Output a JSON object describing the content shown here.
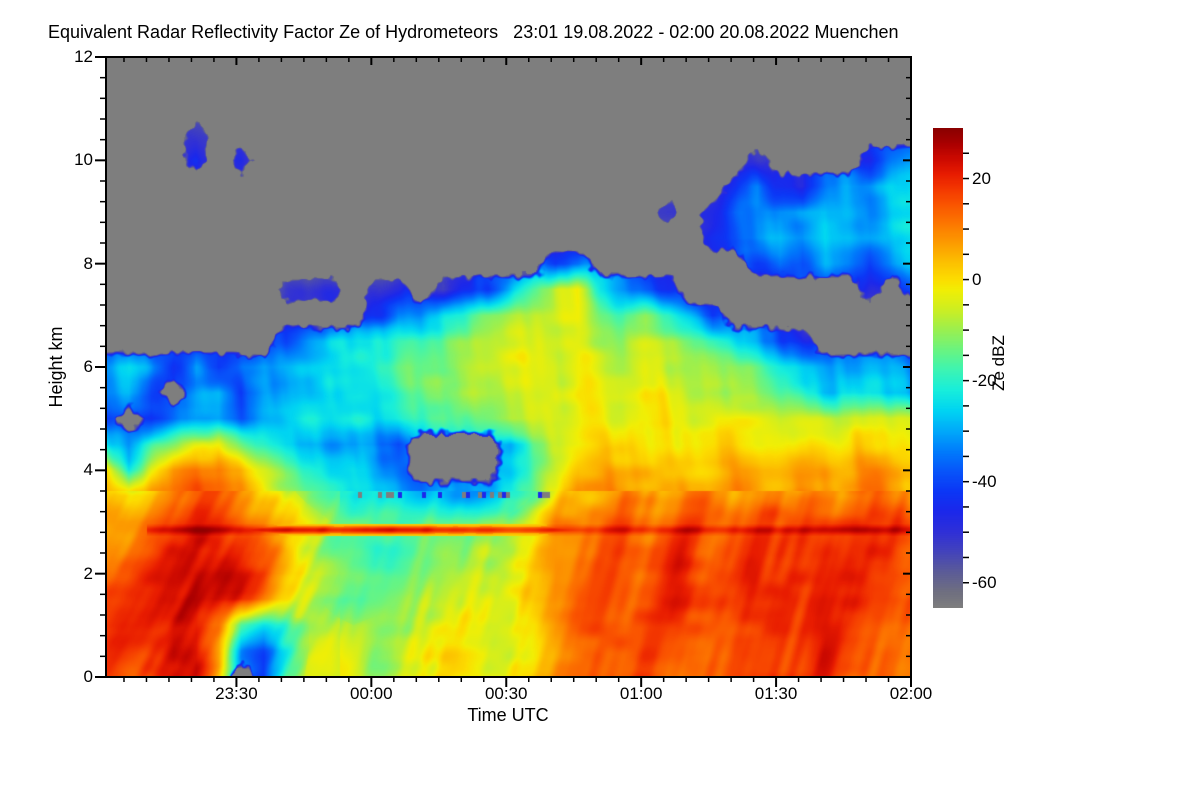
{
  "title": "Equivalent Radar Reflectivity Factor Ze of Hydrometeors   23:01 19.08.2022 - 02:00 20.08.2022 Muenchen",
  "site": "Muenchen",
  "time_span": "23:01 19.08.2022 - 02:00 20.08.2022",
  "no_echo_color": "#7e7e7e",
  "axes": {
    "x": {
      "label": "Time UTC",
      "start_min": 0,
      "end_min": 179,
      "major_ticks": [
        {
          "min": 29,
          "label": "23:30"
        },
        {
          "min": 59,
          "label": "00:00"
        },
        {
          "min": 89,
          "label": "00:30"
        },
        {
          "min": 119,
          "label": "01:00"
        },
        {
          "min": 149,
          "label": "01:30"
        },
        {
          "min": 179,
          "label": "02:00"
        }
      ],
      "minor_step_min": 5,
      "minor_phase_min": 4
    },
    "y": {
      "label": "Height km",
      "min": 0,
      "max": 12,
      "major_ticks": [
        {
          "value": 0,
          "label": "0"
        },
        {
          "value": 2,
          "label": "2"
        },
        {
          "value": 4,
          "label": "4"
        },
        {
          "value": 6,
          "label": "6"
        },
        {
          "value": 8,
          "label": "8"
        },
        {
          "value": 10,
          "label": "10"
        },
        {
          "value": 12,
          "label": "12"
        }
      ],
      "minor_step_km": 0.4
    }
  },
  "colorbar": {
    "label": "Ze dBZ",
    "min": -65,
    "max": 30,
    "minor_step": 5,
    "major_ticks": [
      {
        "value": 20,
        "label": "20"
      },
      {
        "value": 0,
        "label": "0"
      },
      {
        "value": -20,
        "label": "-20"
      },
      {
        "value": -40,
        "label": "-40"
      },
      {
        "value": -60,
        "label": "-60"
      }
    ],
    "stops": [
      [
        -65,
        126,
        126,
        126
      ],
      [
        -62,
        112,
        112,
        128
      ],
      [
        -58,
        92,
        92,
        152
      ],
      [
        -54,
        68,
        68,
        188
      ],
      [
        -50,
        48,
        48,
        216
      ],
      [
        -46,
        28,
        40,
        235
      ],
      [
        -42,
        12,
        55,
        246
      ],
      [
        -38,
        8,
        85,
        250
      ],
      [
        -34,
        0,
        125,
        252
      ],
      [
        -30,
        0,
        170,
        250
      ],
      [
        -26,
        0,
        212,
        243
      ],
      [
        -22,
        24,
        238,
        220
      ],
      [
        -18,
        60,
        244,
        180
      ],
      [
        -14,
        105,
        244,
        130
      ],
      [
        -10,
        155,
        240,
        80
      ],
      [
        -6,
        205,
        238,
        35
      ],
      [
        -2,
        242,
        238,
        5
      ],
      [
        0,
        252,
        222,
        0
      ],
      [
        3,
        252,
        196,
        0
      ],
      [
        6,
        252,
        168,
        0
      ],
      [
        9,
        252,
        140,
        0
      ],
      [
        12,
        252,
        112,
        0
      ],
      [
        15,
        250,
        84,
        0
      ],
      [
        18,
        244,
        56,
        0
      ],
      [
        21,
        232,
        28,
        0
      ],
      [
        24,
        205,
        10,
        0
      ],
      [
        27,
        170,
        0,
        0
      ],
      [
        30,
        139,
        0,
        0
      ]
    ]
  },
  "chart_data": {
    "type": "heatmap",
    "title": "Equivalent Radar Reflectivity Factor Ze of Hydrometeors",
    "xlabel": "Time UTC",
    "ylabel": "Height km",
    "value_label": "Ze dBZ",
    "value_range": [
      -65,
      30
    ],
    "x_start": "23:01",
    "x_end": "02:00",
    "time_minutes": [
      0,
      5,
      10,
      15,
      20,
      25,
      30,
      35,
      40,
      45,
      50,
      55,
      60,
      65,
      70,
      75,
      80,
      85,
      90,
      95,
      100,
      105,
      110,
      115,
      120,
      125,
      130,
      135,
      140,
      145,
      150,
      155,
      160,
      165,
      170,
      175,
      180
    ],
    "heights_km": [
      12,
      11.5,
      11,
      10.5,
      10,
      9.5,
      9,
      8.5,
      8,
      7.5,
      7,
      6.5,
      6,
      5.5,
      5,
      4.5,
      4,
      3.5,
      3,
      2.5,
      2,
      1.5,
      1,
      0.5,
      0
    ],
    "no_echo_value": null,
    "bright_band": {
      "height_km": 2.84,
      "start_min": 10,
      "peak_dbz": 28
    },
    "speckle_gap_row": {
      "height_km": 3.52,
      "start_min": 57,
      "end_min": 100
    },
    "values_dbz": [
      [
        null,
        null,
        null,
        null,
        null,
        null,
        null,
        null,
        null,
        null,
        null,
        null,
        null,
        null,
        null,
        null,
        null,
        null,
        null,
        null,
        null,
        null,
        null,
        null,
        null,
        null,
        null,
        null,
        null,
        null,
        null,
        null,
        null,
        null,
        null,
        null,
        null
      ],
      [
        null,
        null,
        null,
        null,
        null,
        null,
        null,
        null,
        null,
        null,
        null,
        null,
        null,
        null,
        null,
        null,
        null,
        null,
        null,
        null,
        null,
        null,
        null,
        null,
        null,
        null,
        null,
        null,
        null,
        null,
        null,
        null,
        null,
        null,
        null,
        null,
        null
      ],
      [
        null,
        null,
        null,
        null,
        null,
        null,
        null,
        null,
        null,
        null,
        null,
        null,
        null,
        null,
        null,
        null,
        null,
        null,
        null,
        null,
        null,
        null,
        null,
        null,
        null,
        null,
        null,
        null,
        null,
        null,
        null,
        null,
        null,
        null,
        null,
        null,
        null
      ],
      [
        null,
        null,
        null,
        null,
        -52,
        null,
        null,
        null,
        null,
        null,
        null,
        null,
        null,
        null,
        null,
        null,
        null,
        null,
        null,
        null,
        null,
        null,
        null,
        null,
        null,
        null,
        null,
        null,
        null,
        null,
        null,
        null,
        null,
        null,
        null,
        null,
        null
      ],
      [
        null,
        null,
        null,
        null,
        -42,
        null,
        -46,
        null,
        null,
        null,
        null,
        null,
        null,
        null,
        null,
        null,
        null,
        null,
        null,
        null,
        null,
        null,
        null,
        null,
        null,
        null,
        null,
        null,
        null,
        -48,
        null,
        null,
        null,
        null,
        -44,
        -34,
        -30
      ],
      [
        null,
        null,
        null,
        null,
        null,
        null,
        null,
        null,
        null,
        null,
        null,
        null,
        null,
        null,
        null,
        null,
        null,
        null,
        null,
        null,
        null,
        null,
        null,
        null,
        null,
        null,
        null,
        null,
        -44,
        -32,
        -42,
        -46,
        -35,
        -28,
        -30,
        -26,
        -24
      ],
      [
        null,
        null,
        null,
        null,
        null,
        null,
        null,
        null,
        null,
        null,
        null,
        null,
        null,
        null,
        null,
        null,
        null,
        null,
        null,
        null,
        null,
        null,
        null,
        null,
        null,
        -46,
        null,
        -45,
        -35,
        -30,
        -28,
        -30,
        -25,
        -28,
        -30,
        -25,
        -22
      ],
      [
        null,
        null,
        null,
        null,
        null,
        null,
        null,
        null,
        null,
        null,
        null,
        null,
        null,
        null,
        null,
        null,
        null,
        null,
        null,
        null,
        null,
        null,
        null,
        null,
        null,
        null,
        null,
        -42,
        -38,
        -30,
        -26,
        -30,
        -24,
        -27,
        -30,
        -26,
        -22
      ],
      [
        null,
        null,
        null,
        null,
        null,
        null,
        null,
        null,
        null,
        null,
        null,
        null,
        null,
        null,
        null,
        null,
        null,
        null,
        null,
        null,
        -45,
        -40,
        null,
        null,
        null,
        null,
        null,
        null,
        null,
        -42,
        -32,
        -38,
        -28,
        -32,
        -40,
        -30,
        -26
      ],
      [
        null,
        null,
        null,
        null,
        null,
        null,
        null,
        null,
        -50,
        -52,
        -50,
        null,
        -48,
        -48,
        null,
        -50,
        -46,
        -42,
        -30,
        -14,
        -6,
        -4,
        -22,
        -32,
        -40,
        -46,
        null,
        null,
        null,
        null,
        null,
        null,
        null,
        null,
        -48,
        null,
        -40
      ],
      [
        null,
        null,
        null,
        null,
        null,
        null,
        null,
        null,
        null,
        null,
        null,
        null,
        -42,
        -32,
        -34,
        -26,
        -20,
        -15,
        -10,
        -7,
        -4,
        -4,
        -12,
        -18,
        -14,
        -20,
        -30,
        -45,
        null,
        null,
        null,
        null,
        null,
        null,
        null,
        null,
        null
      ],
      [
        null,
        null,
        null,
        null,
        null,
        null,
        null,
        null,
        -36,
        -28,
        -25,
        -22,
        -20,
        -18,
        -20,
        -15,
        -12,
        -10,
        -6,
        -4,
        -2,
        -3,
        -8,
        -10,
        -8,
        -12,
        -15,
        -20,
        -26,
        -32,
        -40,
        -48,
        null,
        null,
        null,
        null,
        null
      ],
      [
        -30,
        -26,
        -34,
        -45,
        -30,
        -40,
        -32,
        -28,
        -26,
        -25,
        -22,
        -20,
        -18,
        -15,
        -16,
        -12,
        -10,
        -8,
        -5,
        -3,
        -1,
        -2,
        -5,
        -6,
        -4,
        -8,
        -10,
        -12,
        -15,
        -18,
        -22,
        -25,
        -28,
        -30,
        -28,
        -30,
        -32
      ],
      [
        -32,
        -28,
        -42,
        null,
        -30,
        -26,
        -38,
        -30,
        -28,
        -26,
        -24,
        -22,
        -20,
        -18,
        -15,
        -14,
        -12,
        -10,
        -8,
        -5,
        -3,
        -2,
        -4,
        -5,
        -3,
        -6,
        -8,
        -10,
        -12,
        -15,
        -18,
        -20,
        -24,
        -26,
        -25,
        -28,
        -30
      ],
      [
        -38,
        null,
        -46,
        -36,
        -28,
        -26,
        -34,
        -27,
        -24,
        -22,
        -25,
        -20,
        -22,
        -20,
        -18,
        -15,
        -18,
        -15,
        -10,
        -6,
        -4,
        -3,
        -3,
        -2,
        -2,
        -3,
        -4,
        -4,
        -5,
        -6,
        -8,
        -6,
        -5,
        -5,
        -4,
        -5,
        -6
      ],
      [
        -25,
        -32,
        -20,
        -12,
        -5,
        0,
        -10,
        -18,
        -25,
        -28,
        -30,
        -28,
        -32,
        -38,
        null,
        null,
        null,
        null,
        -30,
        -15,
        -8,
        -4,
        0,
        2,
        2,
        0,
        0,
        -1,
        -2,
        -2,
        -2,
        -1,
        0,
        0,
        1,
        0,
        -1
      ],
      [
        2,
        -25,
        -5,
        8,
        12,
        14,
        8,
        -2,
        -15,
        -20,
        -25,
        -22,
        -28,
        -32,
        null,
        null,
        null,
        null,
        -26,
        -16,
        -8,
        2,
        5,
        6,
        6,
        5,
        5,
        4,
        5,
        6,
        5,
        6,
        7,
        6,
        7,
        6,
        5
      ],
      [
        5,
        4,
        8,
        14,
        16,
        15,
        10,
        2,
        -8,
        -15,
        -20,
        -22,
        -25,
        -28,
        -30,
        -28,
        -30,
        -28,
        -22,
        -12,
        -2,
        6,
        8,
        9,
        8,
        8,
        7,
        8,
        8,
        9,
        8,
        9,
        9,
        8,
        9,
        8,
        8
      ],
      [
        10,
        12,
        15,
        18,
        20,
        18,
        14,
        8,
        0,
        -6,
        -12,
        -15,
        -18,
        -20,
        -18,
        -16,
        -15,
        -12,
        -8,
        0,
        8,
        12,
        14,
        15,
        14,
        15,
        14,
        15,
        16,
        15,
        14,
        15,
        16,
        15,
        14,
        15,
        14
      ],
      [
        12,
        14,
        18,
        22,
        24,
        22,
        18,
        12,
        2,
        -8,
        -14,
        -18,
        -22,
        -20,
        -16,
        -12,
        -10,
        -8,
        -4,
        2,
        10,
        14,
        16,
        17,
        16,
        17,
        16,
        17,
        18,
        17,
        16,
        17,
        18,
        17,
        16,
        17,
        16
      ],
      [
        14,
        16,
        20,
        24,
        26,
        24,
        20,
        14,
        4,
        -4,
        -10,
        -16,
        -20,
        -18,
        -14,
        -10,
        -8,
        -6,
        -2,
        4,
        12,
        15,
        17,
        18,
        17,
        18,
        17,
        18,
        19,
        18,
        17,
        18,
        19,
        18,
        17,
        18,
        17
      ],
      [
        15,
        17,
        21,
        25,
        26,
        23,
        18,
        10,
        0,
        -8,
        -14,
        -18,
        -16,
        -12,
        -10,
        -8,
        -6,
        -4,
        0,
        6,
        13,
        16,
        17,
        18,
        18,
        17,
        18,
        18,
        19,
        18,
        18,
        19,
        19,
        18,
        18,
        19,
        18
      ],
      [
        16,
        18,
        22,
        25,
        22,
        8,
        -18,
        -22,
        -18,
        -12,
        -10,
        -12,
        -10,
        -8,
        -8,
        -6,
        -5,
        -4,
        -2,
        4,
        12,
        15,
        16,
        17,
        17,
        16,
        17,
        17,
        18,
        17,
        17,
        18,
        18,
        17,
        17,
        18,
        17
      ],
      [
        15,
        17,
        21,
        24,
        20,
        2,
        -30,
        -38,
        -25,
        -12,
        -8,
        -10,
        -8,
        -6,
        -6,
        -5,
        -4,
        -3,
        0,
        5,
        12,
        14,
        15,
        16,
        16,
        15,
        16,
        16,
        17,
        16,
        16,
        17,
        17,
        16,
        16,
        17,
        16
      ],
      [
        14,
        16,
        20,
        22,
        18,
        0,
        null,
        -42,
        -20,
        -10,
        -6,
        -8,
        -6,
        -5,
        -5,
        -4,
        -3,
        -2,
        1,
        6,
        12,
        14,
        15,
        15,
        15,
        14,
        15,
        15,
        16,
        15,
        15,
        16,
        16,
        15,
        15,
        16,
        15
      ]
    ]
  }
}
